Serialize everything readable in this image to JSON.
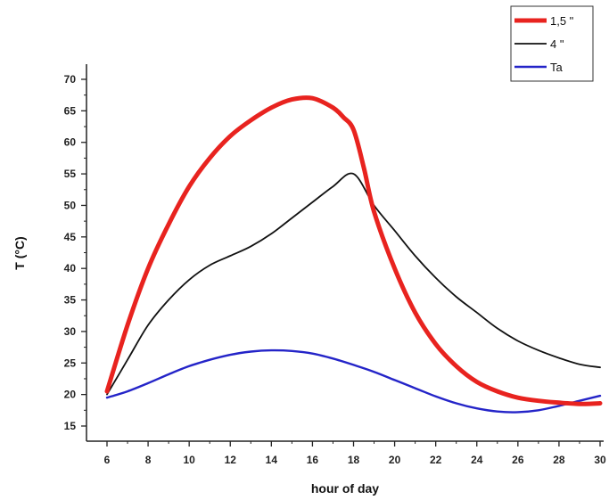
{
  "chart_data": {
    "type": "line",
    "title": "",
    "xlabel": "hour of day",
    "ylabel": "T (°C)",
    "xlim": [
      6,
      30
    ],
    "ylim": [
      15,
      70
    ],
    "xticks": [
      6,
      8,
      10,
      12,
      14,
      16,
      18,
      20,
      22,
      24,
      26,
      28,
      30
    ],
    "yticks": [
      15,
      20,
      25,
      30,
      35,
      40,
      45,
      50,
      55,
      60,
      65,
      70
    ],
    "xtick_labels": [
      "6",
      "8",
      "10",
      "12",
      "14",
      "16",
      "18",
      "20",
      "22",
      "24",
      "26",
      "28",
      "30"
    ],
    "ytick_labels": [
      "15",
      "20",
      "25",
      "30",
      "35",
      "40",
      "45",
      "50",
      "55",
      "60",
      "65",
      "70"
    ],
    "grid": false,
    "legend_position": "top-right",
    "series": [
      {
        "name": "1,5 \"",
        "color": "#e8231f",
        "x": [
          6,
          7,
          8,
          9,
          10,
          11,
          12,
          13,
          14,
          15,
          16,
          17,
          17.5,
          18,
          18.5,
          19,
          20,
          21,
          22,
          23,
          24,
          25,
          26,
          27,
          28,
          29,
          30
        ],
        "y": [
          20.5,
          31,
          40,
          47,
          53,
          57.5,
          61,
          63.5,
          65.5,
          66.8,
          67,
          65.5,
          64,
          62,
          56,
          49,
          40,
          33,
          28,
          24.5,
          22,
          20.5,
          19.5,
          19,
          18.7,
          18.5,
          18.6
        ]
      },
      {
        "name": "4 \"",
        "color": "#111111",
        "x": [
          6,
          7,
          8,
          9,
          10,
          11,
          12,
          13,
          14,
          15,
          16,
          17,
          18,
          19,
          20,
          21,
          22,
          23,
          24,
          25,
          26,
          27,
          28,
          29,
          30
        ],
        "y": [
          20,
          25.5,
          31,
          35,
          38.2,
          40.5,
          42,
          43.5,
          45.5,
          48,
          50.5,
          53,
          55,
          50,
          46,
          42,
          38.5,
          35.5,
          33,
          30.5,
          28.5,
          27,
          25.8,
          24.8,
          24.3
        ]
      },
      {
        "name": "Ta",
        "color": "#2424c8",
        "x": [
          6,
          7,
          8,
          9,
          10,
          11,
          12,
          13,
          14,
          15,
          16,
          17,
          18,
          19,
          20,
          21,
          22,
          23,
          24,
          25,
          26,
          27,
          28,
          29,
          30
        ],
        "y": [
          19.5,
          20.5,
          21.8,
          23.2,
          24.5,
          25.5,
          26.3,
          26.8,
          27,
          26.9,
          26.5,
          25.7,
          24.7,
          23.6,
          22.3,
          21,
          19.7,
          18.6,
          17.8,
          17.3,
          17.2,
          17.5,
          18.2,
          19,
          19.8
        ]
      }
    ]
  }
}
